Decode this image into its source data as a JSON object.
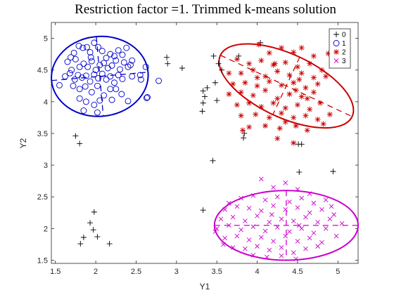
{
  "chart_data": {
    "type": "scatter",
    "title": "Restriction factor =1.  Trimmed k-means solution",
    "xlabel": "Y1",
    "ylabel": "Y2",
    "xlim": [
      1.45,
      5.25
    ],
    "ylim": [
      1.45,
      5.25
    ],
    "xticks": [
      1.5,
      2,
      2.5,
      3,
      3.5,
      4,
      4.5,
      5
    ],
    "yticks": [
      1.5,
      2,
      2.5,
      3,
      3.5,
      4,
      4.5,
      5
    ],
    "xtick_labels": [
      "1.5",
      "2",
      "2.5",
      "3",
      "3.5",
      "4",
      "4.5",
      "5"
    ],
    "ytick_labels": [
      "1.5",
      "2",
      "2.5",
      "3",
      "3.5",
      "4",
      "4.5",
      "5"
    ],
    "grid": false,
    "legend": "top-right",
    "series": [
      {
        "name": "0",
        "marker": "+",
        "color": "#000000",
        "points": [
          [
            2.88,
            4.7
          ],
          [
            2.89,
            4.6
          ],
          [
            3.07,
            4.53
          ],
          [
            3.46,
            4.72
          ],
          [
            3.52,
            4.6
          ],
          [
            3.56,
            4.5
          ],
          [
            3.77,
            4.72
          ],
          [
            4.04,
            4.93
          ],
          [
            3.33,
            4.17
          ],
          [
            3.38,
            4.22
          ],
          [
            3.35,
            4.08
          ],
          [
            3.32,
            3.85
          ],
          [
            3.33,
            3.98
          ],
          [
            3.48,
            4.3
          ],
          [
            3.5,
            4.02
          ],
          [
            3.84,
            3.5
          ],
          [
            3.83,
            3.43
          ],
          [
            4.51,
            3.33
          ],
          [
            4.55,
            3.33
          ],
          [
            3.45,
            3.07
          ],
          [
            4.52,
            2.89
          ],
          [
            4.94,
            2.9
          ],
          [
            1.75,
            3.46
          ],
          [
            1.8,
            3.34
          ],
          [
            3.33,
            2.29
          ],
          [
            1.98,
            2.26
          ],
          [
            1.93,
            2.09
          ],
          [
            1.97,
            1.98
          ],
          [
            1.85,
            1.86
          ],
          [
            2.02,
            1.87
          ],
          [
            1.81,
            1.76
          ],
          [
            2.17,
            1.76
          ]
        ]
      },
      {
        "name": "1",
        "marker": "o",
        "color": "#0000cc",
        "points": [
          [
            1.73,
            4.77
          ],
          [
            1.79,
            4.88
          ],
          [
            1.84,
            4.85
          ],
          [
            1.89,
            4.86
          ],
          [
            1.93,
            4.78
          ],
          [
            1.98,
            4.93
          ],
          [
            2.03,
            4.86
          ],
          [
            2.08,
            4.8
          ],
          [
            2.13,
            4.69
          ],
          [
            2.18,
            4.75
          ],
          [
            2.23,
            4.72
          ],
          [
            2.28,
            4.81
          ],
          [
            2.33,
            4.74
          ],
          [
            2.38,
            4.85
          ],
          [
            1.65,
            4.63
          ],
          [
            1.7,
            4.5
          ],
          [
            1.75,
            4.67
          ],
          [
            1.8,
            4.55
          ],
          [
            1.85,
            4.6
          ],
          [
            1.9,
            4.55
          ],
          [
            1.95,
            4.64
          ],
          [
            2.0,
            4.5
          ],
          [
            2.05,
            4.58
          ],
          [
            2.1,
            4.61
          ],
          [
            2.15,
            4.53
          ],
          [
            2.2,
            4.57
          ],
          [
            2.25,
            4.65
          ],
          [
            2.3,
            4.51
          ],
          [
            2.35,
            4.62
          ],
          [
            2.4,
            4.55
          ],
          [
            2.45,
            4.65
          ],
          [
            1.62,
            4.4
          ],
          [
            1.68,
            4.45
          ],
          [
            1.74,
            4.35
          ],
          [
            1.78,
            4.42
          ],
          [
            1.83,
            4.38
          ],
          [
            1.88,
            4.41
          ],
          [
            1.93,
            4.32
          ],
          [
            1.98,
            4.43
          ],
          [
            2.03,
            4.37
          ],
          [
            2.08,
            4.44
          ],
          [
            2.13,
            4.35
          ],
          [
            2.18,
            4.4
          ],
          [
            2.23,
            4.3
          ],
          [
            2.28,
            4.42
          ],
          [
            2.33,
            4.36
          ],
          [
            2.45,
            4.4
          ],
          [
            1.72,
            4.25
          ],
          [
            1.8,
            4.2
          ],
          [
            1.87,
            4.24
          ],
          [
            1.95,
            4.15
          ],
          [
            2.02,
            4.25
          ],
          [
            2.1,
            4.1
          ],
          [
            2.18,
            4.2
          ],
          [
            2.25,
            4.2
          ],
          [
            2.32,
            4.12
          ],
          [
            1.8,
            4.05
          ],
          [
            1.88,
            4.0
          ],
          [
            1.98,
            3.95
          ],
          [
            2.05,
            4.02
          ],
          [
            2.2,
            4.03
          ],
          [
            1.85,
            3.86
          ],
          [
            2.02,
            3.83
          ],
          [
            2.4,
            4.01
          ],
          [
            2.63,
            4.06
          ],
          [
            2.64,
            4.07
          ],
          [
            2.56,
            4.35
          ],
          [
            2.78,
            4.33
          ],
          [
            2.55,
            4.42
          ],
          [
            2.62,
            4.55
          ],
          [
            1.55,
            4.26
          ],
          [
            1.69,
            4.7
          ],
          [
            2.43,
            4.58
          ],
          [
            1.94,
            4.7
          ]
        ]
      },
      {
        "name": "2",
        "marker": "*",
        "color": "#cc0000",
        "points": [
          [
            4.02,
            4.9
          ],
          [
            4.15,
            4.77
          ],
          [
            4.3,
            4.85
          ],
          [
            4.45,
            4.78
          ],
          [
            4.55,
            4.85
          ],
          [
            4.7,
            4.72
          ],
          [
            4.88,
            4.76
          ],
          [
            3.75,
            4.67
          ],
          [
            3.9,
            4.6
          ],
          [
            4.05,
            4.65
          ],
          [
            4.2,
            4.58
          ],
          [
            4.35,
            4.62
          ],
          [
            4.5,
            4.55
          ],
          [
            4.65,
            4.6
          ],
          [
            4.8,
            4.5
          ],
          [
            3.65,
            4.45
          ],
          [
            3.8,
            4.45
          ],
          [
            3.95,
            4.5
          ],
          [
            4.1,
            4.4
          ],
          [
            4.25,
            4.48
          ],
          [
            4.4,
            4.42
          ],
          [
            4.55,
            4.45
          ],
          [
            4.7,
            4.38
          ],
          [
            4.85,
            4.4
          ],
          [
            3.7,
            4.28
          ],
          [
            3.85,
            4.3
          ],
          [
            4.0,
            4.25
          ],
          [
            4.15,
            4.32
          ],
          [
            4.3,
            4.26
          ],
          [
            4.45,
            4.3
          ],
          [
            4.6,
            4.22
          ],
          [
            4.75,
            4.28
          ],
          [
            3.65,
            4.12
          ],
          [
            3.8,
            4.15
          ],
          [
            3.95,
            4.1
          ],
          [
            4.1,
            4.18
          ],
          [
            4.25,
            4.05
          ],
          [
            4.4,
            4.12
          ],
          [
            4.55,
            4.08
          ],
          [
            4.7,
            4.15
          ],
          [
            3.75,
            3.95
          ],
          [
            3.9,
            3.98
          ],
          [
            4.05,
            3.92
          ],
          [
            4.2,
            3.98
          ],
          [
            4.35,
            3.9
          ],
          [
            4.5,
            3.95
          ],
          [
            4.65,
            3.88
          ],
          [
            4.78,
            3.98
          ],
          [
            3.8,
            3.78
          ],
          [
            3.98,
            3.8
          ],
          [
            4.15,
            3.75
          ],
          [
            4.3,
            3.82
          ],
          [
            4.45,
            3.75
          ],
          [
            4.6,
            3.78
          ],
          [
            4.75,
            3.72
          ],
          [
            3.9,
            3.6
          ],
          [
            4.1,
            3.62
          ],
          [
            4.28,
            3.58
          ],
          [
            4.48,
            3.62
          ],
          [
            4.62,
            3.55
          ],
          [
            4.82,
            3.65
          ],
          [
            4.25,
            3.42
          ],
          [
            4.45,
            3.35
          ],
          [
            3.82,
            3.55
          ],
          [
            4.9,
            3.8
          ],
          [
            4.62,
            4.05
          ],
          [
            4.48,
            4.18
          ],
          [
            4.52,
            4.35
          ],
          [
            4.35,
            3.68
          ],
          [
            4.0,
            4.38
          ],
          [
            4.22,
            4.6
          ]
        ]
      },
      {
        "name": "3",
        "marker": "x",
        "color": "#cc00cc",
        "points": [
          [
            4.05,
            2.78
          ],
          [
            4.2,
            2.65
          ],
          [
            4.35,
            2.72
          ],
          [
            4.5,
            2.62
          ],
          [
            4.65,
            2.55
          ],
          [
            3.8,
            2.48
          ],
          [
            3.95,
            2.52
          ],
          [
            4.1,
            2.45
          ],
          [
            4.25,
            2.5
          ],
          [
            4.4,
            2.42
          ],
          [
            4.55,
            2.48
          ],
          [
            4.7,
            2.4
          ],
          [
            4.85,
            2.45
          ],
          [
            3.6,
            2.3
          ],
          [
            3.75,
            2.35
          ],
          [
            3.9,
            2.32
          ],
          [
            4.05,
            2.28
          ],
          [
            4.2,
            2.36
          ],
          [
            4.35,
            2.3
          ],
          [
            4.5,
            2.33
          ],
          [
            4.65,
            2.25
          ],
          [
            4.8,
            2.3
          ],
          [
            4.95,
            2.22
          ],
          [
            3.55,
            2.15
          ],
          [
            3.7,
            2.18
          ],
          [
            3.85,
            2.12
          ],
          [
            4.0,
            2.2
          ],
          [
            4.15,
            2.1
          ],
          [
            4.3,
            2.15
          ],
          [
            4.45,
            2.12
          ],
          [
            4.6,
            2.18
          ],
          [
            4.75,
            2.1
          ],
          [
            4.9,
            2.15
          ],
          [
            5.05,
            2.08
          ],
          [
            3.5,
            2.0
          ],
          [
            3.65,
            2.05
          ],
          [
            3.8,
            1.98
          ],
          [
            3.95,
            2.03
          ],
          [
            4.1,
            1.96
          ],
          [
            4.25,
            2.02
          ],
          [
            4.4,
            1.95
          ],
          [
            4.55,
            2.0
          ],
          [
            4.7,
            1.93
          ],
          [
            4.85,
            2.0
          ],
          [
            3.6,
            1.85
          ],
          [
            3.75,
            1.88
          ],
          [
            3.9,
            1.82
          ],
          [
            4.05,
            1.86
          ],
          [
            4.2,
            1.8
          ],
          [
            4.35,
            1.88
          ],
          [
            4.5,
            1.8
          ],
          [
            4.65,
            1.85
          ],
          [
            4.8,
            1.78
          ],
          [
            3.7,
            1.7
          ],
          [
            3.85,
            1.68
          ],
          [
            4.0,
            1.72
          ],
          [
            4.15,
            1.66
          ],
          [
            4.3,
            1.7
          ],
          [
            4.45,
            1.62
          ],
          [
            4.6,
            1.68
          ],
          [
            4.75,
            1.72
          ],
          [
            3.95,
            1.58
          ],
          [
            4.12,
            1.55
          ],
          [
            4.3,
            1.57
          ],
          [
            4.48,
            1.52
          ],
          [
            3.48,
            1.95
          ],
          [
            3.58,
            1.75
          ],
          [
            4.98,
            1.88
          ],
          [
            4.92,
            2.35
          ],
          [
            3.65,
            2.4
          ],
          [
            4.52,
            2.05
          ],
          [
            4.18,
            2.22
          ]
        ]
      }
    ],
    "ellipses": [
      {
        "cluster": "1",
        "color": "#0000cc",
        "center": [
          2.05,
          4.4
        ],
        "rx": 0.6,
        "ry": 0.63,
        "angle": 5
      },
      {
        "cluster": "2",
        "color": "#cc0000",
        "center": [
          4.36,
          4.25
        ],
        "rx": 0.9,
        "ry": 0.5,
        "angle": -25
      },
      {
        "cluster": "3",
        "color": "#cc00cc",
        "center": [
          4.36,
          2.05
        ],
        "rx": 0.89,
        "ry": 0.55,
        "angle": 0
      }
    ]
  }
}
